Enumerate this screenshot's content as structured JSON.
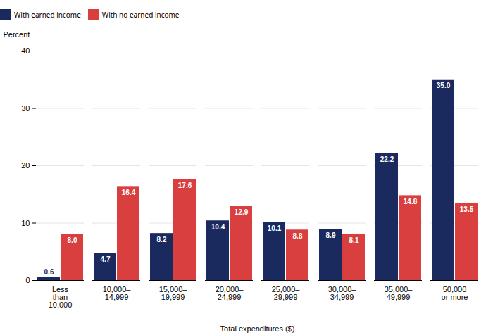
{
  "chart_data": {
    "type": "bar",
    "categories": [
      "Less\nthan\n10,000",
      "10,000–\n14,999",
      "15,000–\n19,999",
      "20,000–\n24,999",
      "25,000–\n29,999",
      "30,000–\n34,999",
      "35,000–\n49,999",
      "50,000\nor more"
    ],
    "series": [
      {
        "name": "With earned income",
        "color": "#1b2a5e",
        "values": [
          0.6,
          4.7,
          8.2,
          10.4,
          10.1,
          8.9,
          22.2,
          35.0
        ],
        "value_labels": [
          "0.6",
          "4.7",
          "8.2",
          "10.4",
          "10.1",
          "8.9",
          "22.2",
          "35.0"
        ]
      },
      {
        "name": "With no earned income",
        "color": "#d93f3f",
        "values": [
          8.0,
          16.4,
          17.6,
          12.9,
          8.8,
          8.1,
          14.8,
          13.5
        ],
        "value_labels": [
          "8.0",
          "16.4",
          "17.6",
          "12.9",
          "8.8",
          "8.1",
          "14.8",
          "13.5"
        ]
      }
    ],
    "xlabel": "Total expenditures ($)",
    "ylabel": "Percent",
    "ylim": [
      0,
      40
    ],
    "yticks": [
      0,
      10,
      20,
      30,
      40
    ],
    "grid": true,
    "legend": "top",
    "data_labels": true
  }
}
